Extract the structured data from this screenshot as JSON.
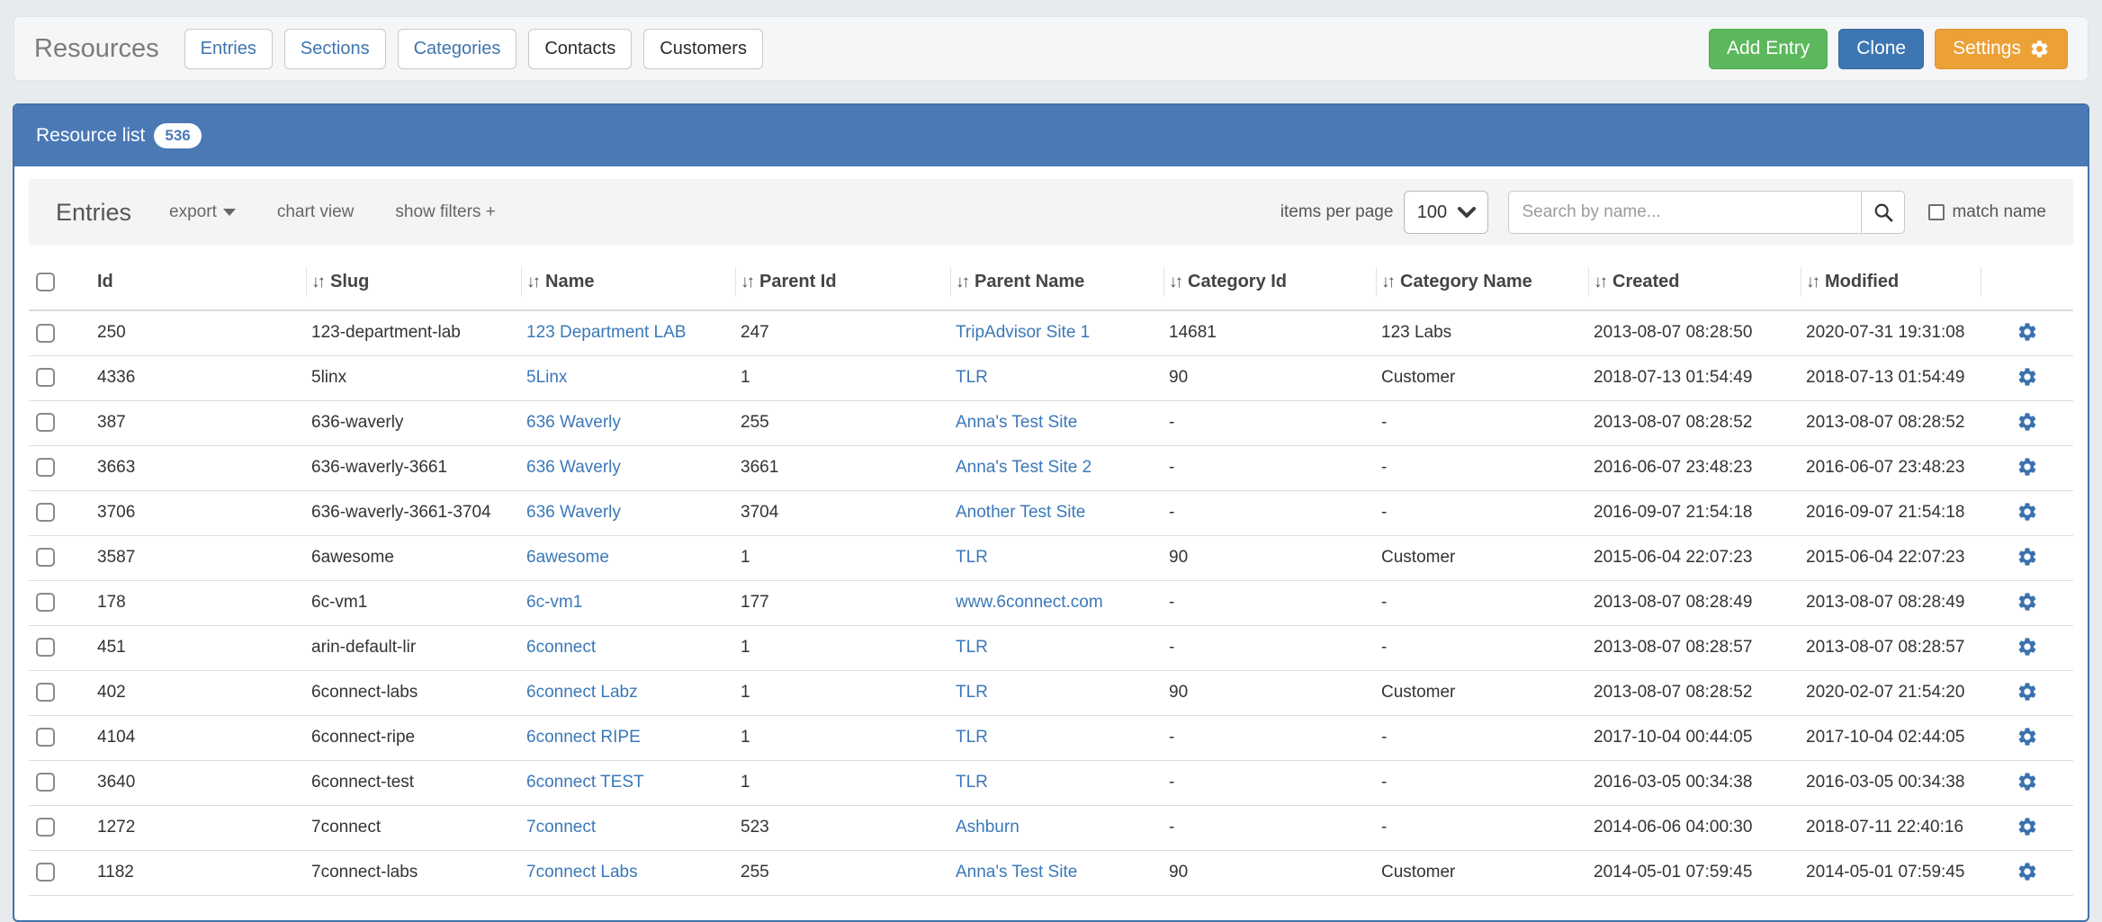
{
  "header": {
    "title": "Resources",
    "tabs": [
      {
        "label": "Entries",
        "highlighted": true
      },
      {
        "label": "Sections",
        "highlighted": true
      },
      {
        "label": "Categories",
        "highlighted": true
      },
      {
        "label": "Contacts",
        "highlighted": false
      },
      {
        "label": "Customers",
        "highlighted": false
      }
    ],
    "actions": [
      {
        "label": "Add Entry",
        "style": "green",
        "icon": null
      },
      {
        "label": "Clone",
        "style": "blue",
        "icon": null
      },
      {
        "label": "Settings",
        "style": "orange",
        "icon": "gear-icon"
      }
    ]
  },
  "panel": {
    "title": "Resource list",
    "count": "536"
  },
  "toolbar": {
    "heading": "Entries",
    "export_label": "export",
    "chart_view_label": "chart view",
    "show_filters_label": "show filters +",
    "items_per_page_label": "items per page",
    "items_per_page_value": "100",
    "search_placeholder": "Search by name...",
    "match_name_label": "match name"
  },
  "icons": {
    "settings_button": "gear-icon",
    "export_menu": "caret-down-icon",
    "items_per_page": "chevron-down-icon",
    "search_button": "search-icon",
    "sortable_column": "sort-arrows-icon",
    "row_action": "gear-icon"
  },
  "colors": {
    "panel_blue": "#4a79b5",
    "panel_border": "#4272a8",
    "button_green": "#5cb85c",
    "button_blue": "#3d76b3",
    "button_orange": "#eca137",
    "link": "#3b78b9",
    "page_background": "#e7ebee"
  },
  "table": {
    "columns": [
      {
        "label": "Id",
        "sortable": false
      },
      {
        "label": "Slug",
        "sortable": true
      },
      {
        "label": "Name",
        "sortable": true
      },
      {
        "label": "Parent Id",
        "sortable": true
      },
      {
        "label": "Parent Name",
        "sortable": true
      },
      {
        "label": "Category Id",
        "sortable": true
      },
      {
        "label": "Category Name",
        "sortable": true
      },
      {
        "label": "Created",
        "sortable": true
      },
      {
        "label": "Modified",
        "sortable": true
      }
    ],
    "rows": [
      {
        "id": "250",
        "slug": "123-department-lab",
        "name": "123 Department LAB",
        "parent_id": "247",
        "parent_name": "TripAdvisor Site 1",
        "category_id": "14681",
        "category_name": "123 Labs",
        "created": "2013-08-07 08:28:50",
        "modified": "2020-07-31 19:31:08"
      },
      {
        "id": "4336",
        "slug": "5linx",
        "name": "5Linx",
        "parent_id": "1",
        "parent_name": "TLR",
        "category_id": "90",
        "category_name": "Customer",
        "created": "2018-07-13 01:54:49",
        "modified": "2018-07-13 01:54:49"
      },
      {
        "id": "387",
        "slug": "636-waverly",
        "name": "636 Waverly",
        "parent_id": "255",
        "parent_name": "Anna's Test Site",
        "category_id": "-",
        "category_name": "-",
        "created": "2013-08-07 08:28:52",
        "modified": "2013-08-07 08:28:52"
      },
      {
        "id": "3663",
        "slug": "636-waverly-3661",
        "name": "636 Waverly",
        "parent_id": "3661",
        "parent_name": "Anna's Test Site 2",
        "category_id": "-",
        "category_name": "-",
        "created": "2016-06-07 23:48:23",
        "modified": "2016-06-07 23:48:23"
      },
      {
        "id": "3706",
        "slug": "636-waverly-3661-3704",
        "name": "636 Waverly",
        "parent_id": "3704",
        "parent_name": "Another Test Site",
        "category_id": "-",
        "category_name": "-",
        "created": "2016-09-07 21:54:18",
        "modified": "2016-09-07 21:54:18"
      },
      {
        "id": "3587",
        "slug": "6awesome",
        "name": "6awesome",
        "parent_id": "1",
        "parent_name": "TLR",
        "category_id": "90",
        "category_name": "Customer",
        "created": "2015-06-04 22:07:23",
        "modified": "2015-06-04 22:07:23"
      },
      {
        "id": "178",
        "slug": "6c-vm1",
        "name": "6c-vm1",
        "parent_id": "177",
        "parent_name": "www.6connect.com",
        "category_id": "-",
        "category_name": "-",
        "created": "2013-08-07 08:28:49",
        "modified": "2013-08-07 08:28:49"
      },
      {
        "id": "451",
        "slug": "arin-default-lir",
        "name": "6connect",
        "parent_id": "1",
        "parent_name": "TLR",
        "category_id": "-",
        "category_name": "-",
        "created": "2013-08-07 08:28:57",
        "modified": "2013-08-07 08:28:57"
      },
      {
        "id": "402",
        "slug": "6connect-labs",
        "name": "6connect Labz",
        "parent_id": "1",
        "parent_name": "TLR",
        "category_id": "90",
        "category_name": "Customer",
        "created": "2013-08-07 08:28:52",
        "modified": "2020-02-07 21:54:20"
      },
      {
        "id": "4104",
        "slug": "6connect-ripe",
        "name": "6connect RIPE",
        "parent_id": "1",
        "parent_name": "TLR",
        "category_id": "-",
        "category_name": "-",
        "created": "2017-10-04 00:44:05",
        "modified": "2017-10-04 02:44:05"
      },
      {
        "id": "3640",
        "slug": "6connect-test",
        "name": "6connect TEST",
        "parent_id": "1",
        "parent_name": "TLR",
        "category_id": "-",
        "category_name": "-",
        "created": "2016-03-05 00:34:38",
        "modified": "2016-03-05 00:34:38"
      },
      {
        "id": "1272",
        "slug": "7connect",
        "name": "7connect",
        "parent_id": "523",
        "parent_name": "Ashburn",
        "category_id": "-",
        "category_name": "-",
        "created": "2014-06-06 04:00:30",
        "modified": "2018-07-11 22:40:16"
      },
      {
        "id": "1182",
        "slug": "7connect-labs",
        "name": "7connect Labs",
        "parent_id": "255",
        "parent_name": "Anna's Test Site",
        "category_id": "90",
        "category_name": "Customer",
        "created": "2014-05-01 07:59:45",
        "modified": "2014-05-01 07:59:45"
      }
    ]
  }
}
